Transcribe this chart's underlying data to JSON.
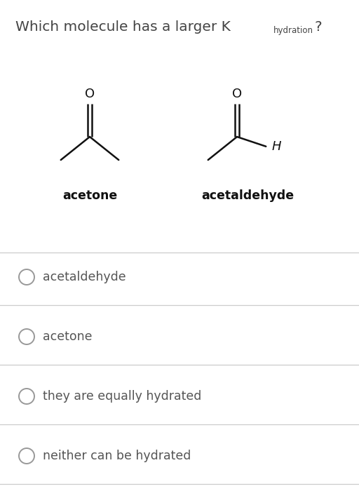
{
  "title_main": "Which molecule has a larger K",
  "title_subscript": "hydration",
  "title_suffix": "?",
  "bg_color": "#ffffff",
  "text_color": "#444444",
  "mol_label_color": "#111111",
  "option_text_color": "#555555",
  "options": [
    "acetaldehyde",
    "acetone",
    "they are equally hydrated",
    "neither can be hydrated"
  ],
  "option_line_color": "#cccccc",
  "circle_color": "#999999",
  "mol1_name": "acetone",
  "mol2_name": "acetaldehyde",
  "title_fontsize": 14.5,
  "label_fontsize": 12.5,
  "option_fontsize": 12.5,
  "subscript_fontsize": 8.5,
  "mol_color": "#111111",
  "mol_lw": 1.8
}
